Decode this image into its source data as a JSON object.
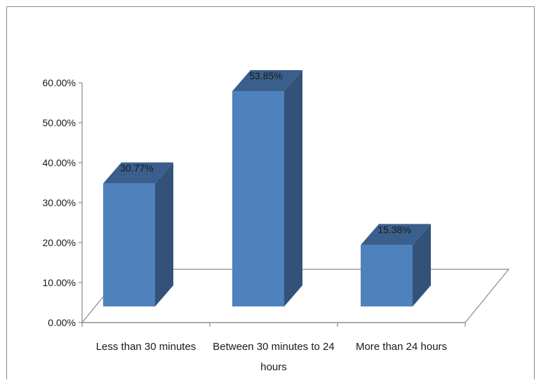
{
  "chart_data": {
    "type": "bar",
    "style": "3d-column",
    "categories": [
      "Less than 30 minutes",
      "Between 30 minutes to 24 hours",
      "More than 24 hours"
    ],
    "category_lines": [
      [
        "Less than 30 minutes"
      ],
      [
        "Between 30 minutes to 24",
        "hours"
      ],
      [
        "More than 24 hours"
      ]
    ],
    "values": [
      30.77,
      53.85,
      15.38
    ],
    "value_labels": [
      "30.77%",
      "53.85%",
      "15.38%"
    ],
    "ylim": [
      0,
      60
    ],
    "yticks": [
      0,
      10,
      20,
      30,
      40,
      50,
      60
    ],
    "ytick_labels": [
      "0.00%",
      "10.00%",
      "20.00%",
      "30.00%",
      "40.00%",
      "50.00%",
      "60.00%"
    ],
    "title": "",
    "xlabel": "",
    "ylabel": "",
    "grid": false,
    "legend": "none",
    "colors": {
      "front": "#4f81bd",
      "side": "#33527a",
      "top": "#3a5f8c",
      "axis": "#8a8a8a"
    }
  }
}
